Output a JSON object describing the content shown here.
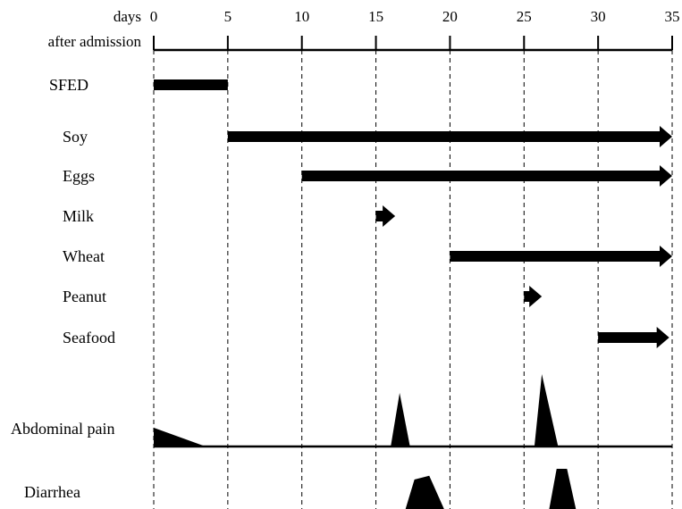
{
  "chart_data": {
    "type": "timeline",
    "axis": {
      "label_line1": "days",
      "label_line2": "after admission",
      "range": [
        0,
        35
      ],
      "ticks": [
        0,
        5,
        10,
        15,
        20,
        25,
        30,
        35
      ],
      "position": "top",
      "grid": "dashed vertical lines at ticks"
    },
    "interventions": [
      {
        "label": "SFED",
        "start": 0,
        "end": 5,
        "arrow": false
      },
      {
        "label": "Soy",
        "start": 5,
        "end": 35,
        "arrow": true
      },
      {
        "label": "Eggs",
        "start": 10,
        "end": 35,
        "arrow": true
      },
      {
        "label": "Milk",
        "start": 15,
        "end": 16.3,
        "arrow": true
      },
      {
        "label": "Wheat",
        "start": 20,
        "end": 35,
        "arrow": true
      },
      {
        "label": "Peanut",
        "start": 25,
        "end": 26.2,
        "arrow": true
      },
      {
        "label": "Seafood",
        "start": 30,
        "end": 34.8,
        "arrow": true
      }
    ],
    "symptoms": [
      {
        "label": "Abdominal pain",
        "baseline_range": [
          0,
          35
        ],
        "shapes": [
          {
            "kind": "wedge",
            "points": [
              [
                0,
                0.35
              ],
              [
                0,
                0
              ],
              [
                3.5,
                0
              ]
            ]
          },
          {
            "kind": "peak",
            "points": [
              [
                16.0,
                0
              ],
              [
                16.6,
                1.0
              ],
              [
                17.3,
                0
              ]
            ]
          },
          {
            "kind": "peak",
            "points": [
              [
                25.7,
                0
              ],
              [
                26.2,
                1.35
              ],
              [
                27.3,
                0
              ]
            ]
          }
        ]
      },
      {
        "label": "Diarrhea",
        "baseline_range": null,
        "shapes": [
          {
            "kind": "bump",
            "points": [
              [
                17.0,
                0
              ],
              [
                17.6,
                0.55
              ],
              [
                18.6,
                0.62
              ],
              [
                19.6,
                0
              ]
            ]
          },
          {
            "kind": "bump",
            "points": [
              [
                26.7,
                0
              ],
              [
                27.2,
                0.75
              ],
              [
                27.9,
                0.75
              ],
              [
                28.5,
                0
              ]
            ]
          }
        ]
      }
    ],
    "colors": {
      "foreground": "#000000",
      "background": "#ffffff"
    }
  }
}
